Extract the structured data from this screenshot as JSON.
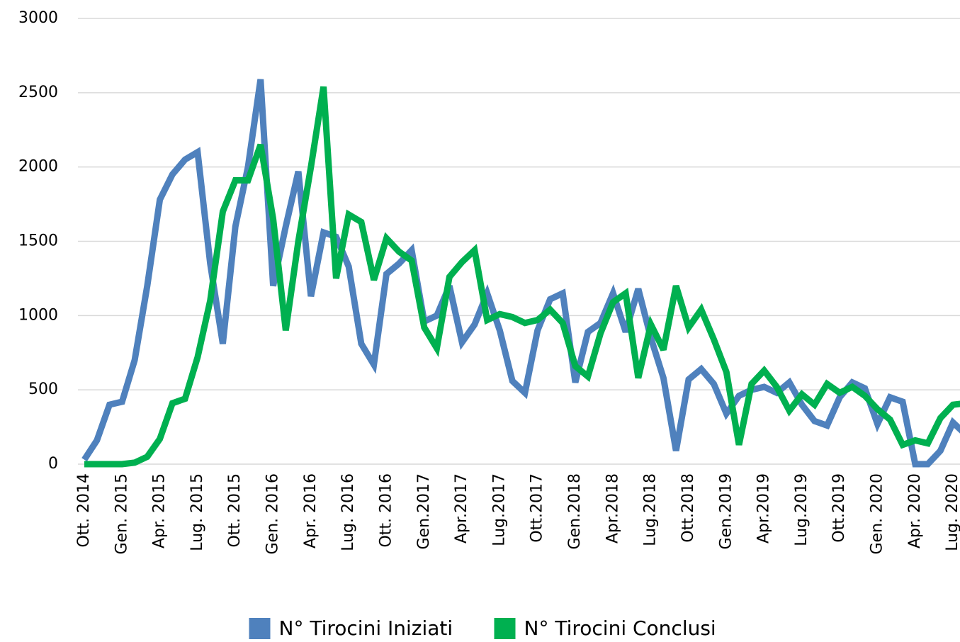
{
  "chart_data": {
    "type": "line",
    "categories": [
      "Ott. 2014",
      null,
      null,
      "Gen. 2015",
      null,
      null,
      "Apr. 2015",
      null,
      null,
      "Lug. 2015",
      null,
      null,
      "Ott. 2015",
      null,
      null,
      "Gen. 2016",
      null,
      null,
      "Apr. 2016",
      null,
      null,
      "Lug. 2016",
      null,
      null,
      "Ott. 2016",
      null,
      null,
      "Gen.2017",
      null,
      null,
      "Apr.2017",
      null,
      null,
      "Lug.2017",
      null,
      null,
      "Ott.2017",
      null,
      null,
      "Gen.2018",
      null,
      null,
      "Apr.2018",
      null,
      null,
      "Lug.2018",
      null,
      null,
      "Ott.2018",
      null,
      null,
      "Gen.2019",
      null,
      null,
      "Apr.2019",
      null,
      null,
      "Lug.2019",
      null,
      null,
      "Ott.2019",
      null,
      null,
      "Gen. 2020",
      null,
      null,
      "Apr. 2020",
      null,
      null,
      "Lug. 2020",
      null
    ],
    "series": [
      {
        "name": "N° Tirocini Iniziati",
        "color": "#4f81bd",
        "values": [
          30,
          160,
          400,
          420,
          700,
          1200,
          1780,
          1950,
          2050,
          2100,
          1350,
          810,
          1600,
          2000,
          2590,
          1200,
          1600,
          1970,
          1130,
          1560,
          1530,
          1330,
          810,
          670,
          1280,
          1350,
          1440,
          960,
          1000,
          1200,
          820,
          940,
          1150,
          900,
          560,
          480,
          900,
          1110,
          1150,
          550,
          890,
          950,
          1150,
          890,
          1180,
          850,
          580,
          90,
          570,
          640,
          540,
          340,
          460,
          500,
          520,
          480,
          550,
          400,
          290,
          260,
          450,
          550,
          510,
          270,
          450,
          420,
          0,
          0,
          90,
          280,
          200
        ]
      },
      {
        "name": "N° Tirocini Conclusi",
        "color": "#00b050",
        "values": [
          0,
          0,
          0,
          0,
          10,
          50,
          170,
          410,
          440,
          720,
          1100,
          1700,
          1910,
          1910,
          2150,
          1650,
          900,
          1500,
          2000,
          2540,
          1250,
          1680,
          1630,
          1240,
          1520,
          1430,
          1370,
          920,
          780,
          1260,
          1360,
          1440,
          970,
          1010,
          990,
          950,
          970,
          1040,
          950,
          660,
          590,
          880,
          1090,
          1150,
          580,
          940,
          770,
          1200,
          920,
          1040,
          840,
          620,
          130,
          540,
          630,
          520,
          360,
          470,
          400,
          540,
          480,
          520,
          460,
          370,
          300,
          130,
          160,
          140,
          310,
          400,
          410
        ]
      }
    ],
    "ylim": [
      0,
      3000
    ],
    "yticks": [
      0,
      500,
      1000,
      1500,
      2000,
      2500,
      3000
    ],
    "grid": true,
    "legend": "bottom"
  }
}
